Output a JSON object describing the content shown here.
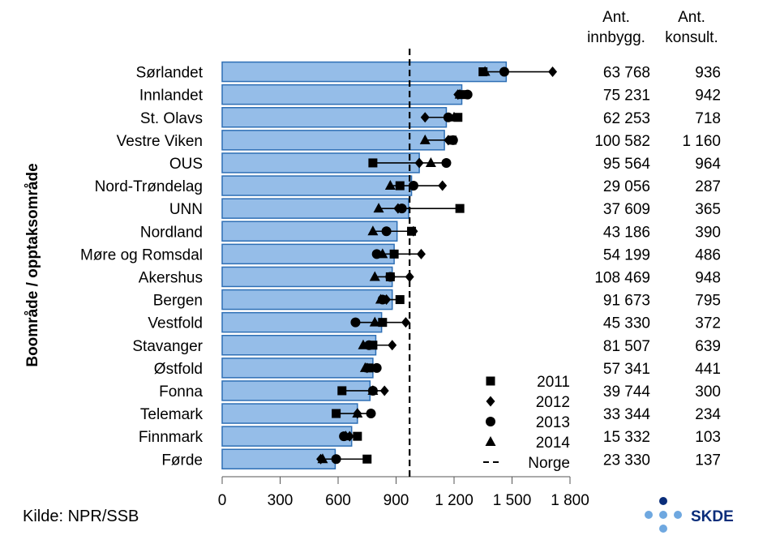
{
  "chart_data": {
    "type": "bar",
    "ylabel": "Boområde / opptaksområde",
    "xlim": [
      0,
      1800
    ],
    "xticks": [
      0,
      300,
      600,
      900,
      1200,
      1500,
      1800
    ],
    "xtick_labels": [
      "0",
      "300",
      "600",
      "900",
      "1 200",
      "1 500",
      "1 800"
    ],
    "reference_line": {
      "name": "Norge",
      "value": 970
    },
    "columns": {
      "innbygg_header": [
        "Ant.",
        "innbygg."
      ],
      "konsult_header": [
        "Ant.",
        "konsult."
      ]
    },
    "legend": {
      "position": "bottom-right",
      "entries": [
        {
          "label": "2011",
          "marker": "square"
        },
        {
          "label": "2012",
          "marker": "diamond"
        },
        {
          "label": "2013",
          "marker": "circle"
        },
        {
          "label": "2014",
          "marker": "triangle"
        },
        {
          "label": "Norge",
          "marker": "dashed-line"
        }
      ]
    },
    "categories": [
      {
        "name": "Sørlandet",
        "value": 1470,
        "y2011": 1350,
        "y2012": 1710,
        "y2013": 1460,
        "y2014": 1360,
        "innbygg": "63 768",
        "konsult": "936"
      },
      {
        "name": "Innlandet",
        "value": 1240,
        "y2011": 1240,
        "y2012": 1220,
        "y2013": 1270,
        "y2014": 1230,
        "innbygg": "75 231",
        "konsult": "942"
      },
      {
        "name": "St. Olavs",
        "value": 1160,
        "y2011": 1220,
        "y2012": 1050,
        "y2013": 1170,
        "y2014": 1200,
        "innbygg": "62 253",
        "konsult": "718"
      },
      {
        "name": "Vestre Viken",
        "value": 1150,
        "y2011": 1190,
        "y2012": 1170,
        "y2013": 1195,
        "y2014": 1050,
        "innbygg": "100 582",
        "konsult": "1 160"
      },
      {
        "name": "OUS",
        "value": 1020,
        "y2011": 780,
        "y2012": 1020,
        "y2013": 1160,
        "y2014": 1080,
        "innbygg": "95 564",
        "konsult": "964"
      },
      {
        "name": "Nord-Trøndelag",
        "value": 980,
        "y2011": 920,
        "y2012": 1140,
        "y2013": 990,
        "y2014": 870,
        "innbygg": "29 056",
        "konsult": "287"
      },
      {
        "name": "UNN",
        "value": 965,
        "y2011": 1230,
        "y2012": 910,
        "y2013": 930,
        "y2014": 810,
        "innbygg": "37 609",
        "konsult": "365"
      },
      {
        "name": "Nordland",
        "value": 905,
        "y2011": 980,
        "y2012": 990,
        "y2013": 850,
        "y2014": 780,
        "innbygg": "43 186",
        "konsult": "390"
      },
      {
        "name": "Møre og Romsdal",
        "value": 890,
        "y2011": 890,
        "y2012": 1030,
        "y2013": 800,
        "y2014": 830,
        "innbygg": "54 199",
        "konsult": "486"
      },
      {
        "name": "Akershus",
        "value": 880,
        "y2011": 870,
        "y2012": 970,
        "y2013": 870,
        "y2014": 790,
        "innbygg": "108 469",
        "konsult": "948"
      },
      {
        "name": "Bergen",
        "value": 880,
        "y2011": 920,
        "y2012": 850,
        "y2013": 830,
        "y2014": 820,
        "innbygg": "91 673",
        "konsult": "795"
      },
      {
        "name": "Vestfold",
        "value": 825,
        "y2011": 830,
        "y2012": 950,
        "y2013": 690,
        "y2014": 790,
        "innbygg": "45 330",
        "konsult": "372"
      },
      {
        "name": "Stavanger",
        "value": 795,
        "y2011": 780,
        "y2012": 880,
        "y2013": 760,
        "y2014": 730,
        "innbygg": "81 507",
        "konsult": "639"
      },
      {
        "name": "Østfold",
        "value": 780,
        "y2011": 760,
        "y2012": 750,
        "y2013": 800,
        "y2014": 740,
        "innbygg": "57 341",
        "konsult": "441"
      },
      {
        "name": "Fonna",
        "value": 765,
        "y2011": 620,
        "y2012": 840,
        "y2013": 780,
        "y2014": 780,
        "innbygg": "39 744",
        "konsult": "300"
      },
      {
        "name": "Telemark",
        "value": 700,
        "y2011": 590,
        "y2012": 700,
        "y2013": 770,
        "y2014": 700,
        "innbygg": "33 344",
        "konsult": "234"
      },
      {
        "name": "Finnmark",
        "value": 670,
        "y2011": 700,
        "y2012": 660,
        "y2013": 630,
        "y2014": 640,
        "innbygg": "15 332",
        "konsult": "103"
      },
      {
        "name": "Førde",
        "value": 585,
        "y2011": 750,
        "y2012": 510,
        "y2013": 590,
        "y2014": 520,
        "innbygg": "23 330",
        "konsult": "137"
      }
    ],
    "bar_color": "#95bde8",
    "bar_stroke": "#2e6fb5"
  },
  "source": "Kilde: NPR/SSB",
  "logo": {
    "text": "SKDE",
    "colors": [
      "#0a2d7a",
      "#6fa8e0"
    ]
  }
}
